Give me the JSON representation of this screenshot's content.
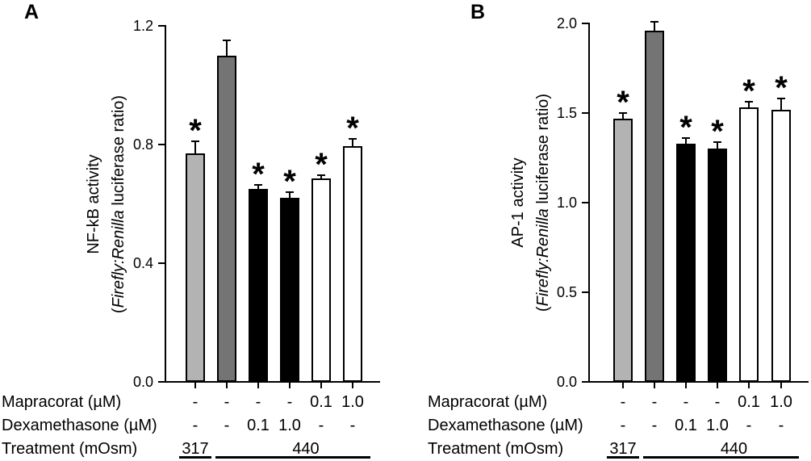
{
  "figure": {
    "background": "#ffffff",
    "axis_color": "#000000"
  },
  "chart_data": [
    {
      "panel_label": "A",
      "type": "bar",
      "ylabel_line1": "NF-kB activity",
      "ylabel_line2": {
        "pre": "(",
        "italic": "Firefly:Renilla",
        "post": " luciferase ratio)"
      },
      "ylim": [
        0.0,
        1.2
      ],
      "yticks": [
        0.0,
        0.4,
        0.8,
        1.2
      ],
      "ytick_labels": [
        "0.0",
        "0.4",
        "0.8",
        "1.2"
      ],
      "bar_values": [
        0.77,
        1.1,
        0.65,
        0.62,
        0.685,
        0.795
      ],
      "bar_errors": [
        0.04,
        0.05,
        0.013,
        0.02,
        0.012,
        0.025
      ],
      "significant": [
        true,
        false,
        true,
        true,
        true,
        true
      ],
      "significance_symbol": "*",
      "bar_colors": [
        "#b3b3b3",
        "#747474",
        "#000000",
        "#000000",
        "#ffffff",
        "#ffffff"
      ],
      "legend": "none",
      "grid": false,
      "x_rows": [
        {
          "label": "Mapracorat (µM)",
          "values": [
            "-",
            "-",
            "-",
            "-",
            "0.1",
            "1.0"
          ]
        },
        {
          "label": "Dexamethasone (µM)",
          "values": [
            "-",
            "-",
            "0.1",
            "1.0",
            "-",
            "-"
          ]
        },
        {
          "label": "Treatment (mOsm)",
          "groups": [
            {
              "value": "317",
              "bar_span": [
                0,
                0
              ]
            },
            {
              "value": "440",
              "bar_span": [
                1,
                5
              ]
            }
          ]
        }
      ]
    },
    {
      "panel_label": "B",
      "type": "bar",
      "ylabel_line1": "AP-1 activity",
      "ylabel_line2": {
        "pre": "(",
        "italic": "Firefly:Renilla",
        "post": " luciferase ratio)"
      },
      "ylim": [
        0.0,
        2.0
      ],
      "yticks": [
        0.0,
        0.5,
        1.0,
        1.5,
        2.0
      ],
      "ytick_labels": [
        "0.0",
        "0.5",
        "1.0",
        "1.5",
        "2.0"
      ],
      "bar_values": [
        1.47,
        1.96,
        1.33,
        1.3,
        1.53,
        1.52
      ],
      "bar_errors": [
        0.03,
        0.05,
        0.03,
        0.04,
        0.035,
        0.06
      ],
      "significant": [
        true,
        false,
        true,
        true,
        true,
        true
      ],
      "significance_symbol": "*",
      "bar_colors": [
        "#b3b3b3",
        "#747474",
        "#000000",
        "#000000",
        "#ffffff",
        "#ffffff"
      ],
      "legend": "none",
      "grid": false,
      "x_rows": [
        {
          "label": "Mapracorat (µM)",
          "values": [
            "-",
            "-",
            "-",
            "-",
            "0.1",
            "1.0"
          ]
        },
        {
          "label": "Dexamethasone (µM)",
          "values": [
            "-",
            "-",
            "0.1",
            "1.0",
            "-",
            "-"
          ]
        },
        {
          "label": "Treatment (mOsm)",
          "groups": [
            {
              "value": "317",
              "bar_span": [
                0,
                0
              ]
            },
            {
              "value": "440",
              "bar_span": [
                1,
                5
              ]
            }
          ]
        }
      ]
    }
  ]
}
